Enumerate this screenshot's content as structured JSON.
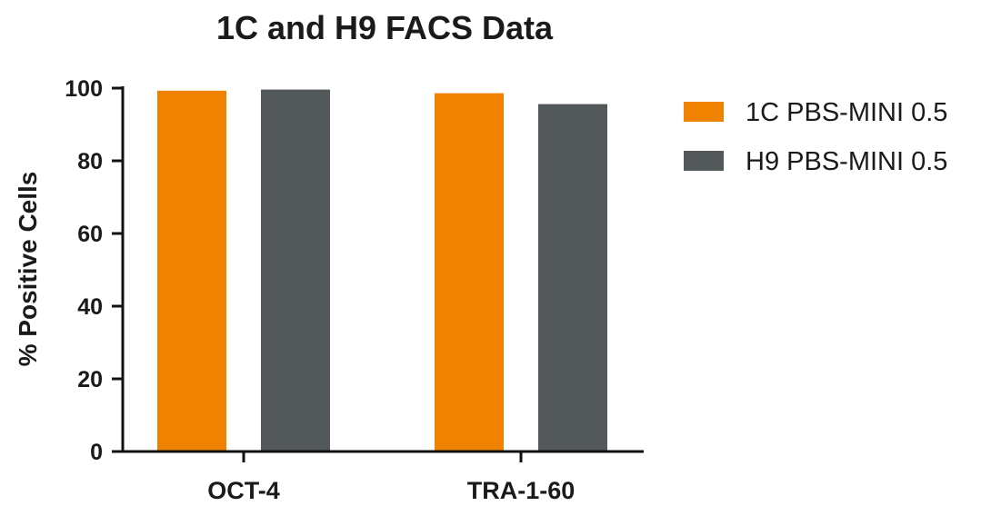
{
  "chart_data": {
    "type": "bar",
    "title": "1C and H9 FACS Data",
    "xlabel": "",
    "ylabel": "% Positive Cells",
    "categories": [
      "OCT-4",
      "TRA-1-60"
    ],
    "series": [
      {
        "name": "1C PBS-MINI 0.5",
        "color": "#ef8200",
        "values": [
          99.3,
          98.6
        ]
      },
      {
        "name": "H9 PBS-MINI 0.5",
        "color": "#53585a",
        "values": [
          99.6,
          95.6
        ]
      }
    ],
    "ylim": [
      0,
      100
    ],
    "yticks": [
      0,
      20,
      40,
      60,
      80,
      100
    ],
    "grid": false,
    "legend_position": "right"
  }
}
